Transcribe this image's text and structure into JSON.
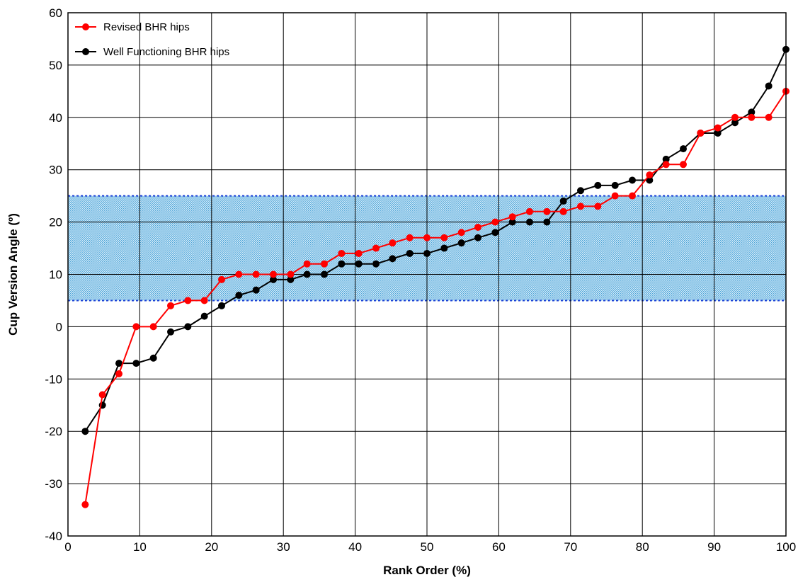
{
  "chart_data": {
    "type": "line",
    "title": "",
    "xlabel": "Rank Order (%)",
    "ylabel": "Cup Version Angle (º)",
    "xlim": [
      0,
      100
    ],
    "ylim": [
      -40,
      60
    ],
    "x_ticks": [
      "0",
      "10",
      "20",
      "30",
      "40",
      "50",
      "60",
      "70",
      "80",
      "90",
      "100"
    ],
    "y_ticks": [
      "-40",
      "-30",
      "-20",
      "-10",
      "0",
      "10",
      "20",
      "30",
      "40",
      "50",
      "60"
    ],
    "grid": true,
    "legend_position": "top-left",
    "shaded_band": {
      "y_from": 5,
      "y_to": 25,
      "color": "#4aa3d8",
      "border_color": "#1a3fd6"
    },
    "x": [
      2.4,
      4.8,
      7.1,
      9.5,
      11.9,
      14.3,
      16.7,
      19.0,
      21.4,
      23.8,
      26.2,
      28.6,
      31.0,
      33.3,
      35.7,
      38.1,
      40.5,
      42.9,
      45.2,
      47.6,
      50.0,
      52.4,
      54.8,
      57.1,
      59.5,
      61.9,
      64.3,
      66.7,
      69.0,
      71.4,
      73.8,
      76.2,
      78.6,
      81.0,
      83.3,
      85.7,
      88.1,
      90.5,
      92.9,
      95.2,
      97.6,
      100.0
    ],
    "series": [
      {
        "name": "Revised BHR hips",
        "color": "#ff0000",
        "values": [
          -34,
          -13,
          -9,
          0,
          0,
          4,
          5,
          5,
          9,
          10,
          10,
          10,
          10,
          12,
          12,
          14,
          14,
          15,
          16,
          17,
          17,
          17,
          18,
          19,
          20,
          21,
          22,
          22,
          22,
          23,
          23,
          25,
          25,
          29,
          31,
          31,
          37,
          38,
          40,
          40,
          40,
          45
        ]
      },
      {
        "name": "Well Functioning BHR hips",
        "color": "#000000",
        "values": [
          -20,
          -15,
          -7,
          -7,
          -6,
          -1,
          0,
          2,
          4,
          6,
          7,
          9,
          9,
          10,
          10,
          12,
          12,
          12,
          13,
          14,
          14,
          15,
          16,
          17,
          18,
          20,
          20,
          20,
          24,
          26,
          27,
          27,
          28,
          28,
          32,
          34,
          37,
          37,
          39,
          41,
          46,
          53
        ]
      }
    ]
  }
}
